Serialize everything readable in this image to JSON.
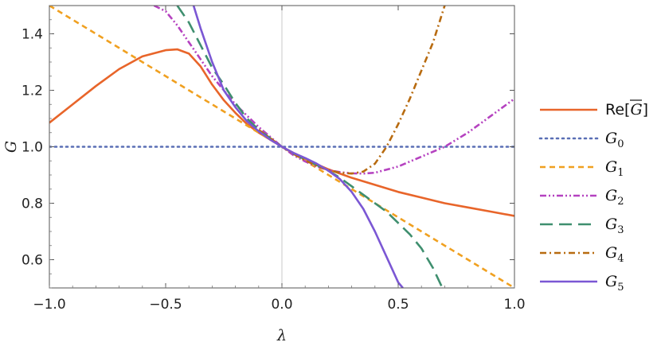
{
  "chart_data": {
    "type": "line",
    "xlabel": "λ",
    "ylabel": "G",
    "xlim": [
      -1.0,
      1.0
    ],
    "ylim": [
      0.5,
      1.5
    ],
    "xticks": [
      "−1.0",
      "−0.5",
      "0.0",
      "0.5",
      "1.0"
    ],
    "xtick_values": [
      -1.0,
      -0.5,
      0.0,
      0.5,
      1.0
    ],
    "yticks": [
      "0.6",
      "0.8",
      "1.0",
      "1.2",
      "1.4"
    ],
    "ytick_values": [
      0.6,
      0.8,
      1.0,
      1.2,
      1.4
    ],
    "grid": false,
    "legend_placement": "right",
    "series": [
      {
        "name": "Re[G̅]",
        "legend_main": "Re[",
        "legend_over": "G",
        "legend_close": "]",
        "color": "#e8652a",
        "dash": "solid",
        "x": [
          -1.0,
          -0.9,
          -0.8,
          -0.7,
          -0.6,
          -0.5,
          -0.45,
          -0.4,
          -0.35,
          -0.3,
          -0.25,
          -0.2,
          -0.15,
          -0.1,
          -0.05,
          0.0,
          0.05,
          0.1,
          0.15,
          0.2,
          0.25,
          0.3,
          0.4,
          0.5,
          0.6,
          0.7,
          0.8,
          0.9,
          1.0
        ],
        "y": [
          1.085,
          1.15,
          1.215,
          1.275,
          1.32,
          1.342,
          1.345,
          1.33,
          1.285,
          1.22,
          1.165,
          1.12,
          1.08,
          1.05,
          1.025,
          1.0,
          0.978,
          0.958,
          0.938,
          0.92,
          0.905,
          0.89,
          0.865,
          0.84,
          0.82,
          0.8,
          0.785,
          0.77,
          0.755
        ]
      },
      {
        "name": "G0",
        "legend_main": "G",
        "legend_sub": "0",
        "color": "#5a6fb5",
        "dash": "dotted",
        "x": [
          -1.0,
          1.0
        ],
        "y": [
          1.0,
          1.0
        ]
      },
      {
        "name": "G1",
        "legend_main": "G",
        "legend_sub": "1",
        "color": "#f0a020",
        "dash": "short-dash",
        "x": [
          -1.0,
          1.0
        ],
        "y": [
          1.5,
          0.5
        ]
      },
      {
        "name": "G2",
        "legend_main": "G",
        "legend_sub": "2",
        "color": "#b542c0",
        "dash": "dash-dot-dot",
        "x": [
          -0.55,
          -0.5,
          -0.45,
          -0.4,
          -0.35,
          -0.3,
          -0.25,
          -0.2,
          -0.15,
          -0.1,
          -0.05,
          0.0,
          0.05,
          0.1,
          0.15,
          0.2,
          0.25,
          0.3,
          0.35,
          0.4,
          0.5,
          0.6,
          0.7,
          0.8,
          0.9,
          1.0
        ],
        "y": [
          1.5,
          1.48,
          1.43,
          1.37,
          1.31,
          1.25,
          1.2,
          1.15,
          1.11,
          1.07,
          1.035,
          1.0,
          0.97,
          0.948,
          0.93,
          0.917,
          0.91,
          0.906,
          0.905,
          0.908,
          0.93,
          0.965,
          1.0,
          1.05,
          1.11,
          1.17
        ]
      },
      {
        "name": "G3",
        "legend_main": "G",
        "legend_sub": "3",
        "color": "#3f8f6f",
        "dash": "long-dash",
        "x": [
          -0.45,
          -0.4,
          -0.35,
          -0.3,
          -0.25,
          -0.2,
          -0.15,
          -0.1,
          -0.05,
          0.0,
          0.05,
          0.1,
          0.15,
          0.2,
          0.25,
          0.3,
          0.35,
          0.4,
          0.45,
          0.5,
          0.55,
          0.6,
          0.65,
          0.69
        ],
        "y": [
          1.5,
          1.44,
          1.36,
          1.28,
          1.22,
          1.155,
          1.1,
          1.06,
          1.03,
          1.0,
          0.975,
          0.955,
          0.935,
          0.915,
          0.89,
          0.86,
          0.83,
          0.8,
          0.77,
          0.73,
          0.69,
          0.64,
          0.57,
          0.5
        ]
      },
      {
        "name": "G4",
        "legend_main": "G",
        "legend_sub": "4",
        "color": "#b86b10",
        "dash": "dash-dot",
        "x": [
          -0.1,
          -0.05,
          0.0,
          0.05,
          0.1,
          0.15,
          0.2,
          0.25,
          0.3,
          0.35,
          0.4,
          0.45,
          0.5,
          0.55,
          0.6,
          0.65,
          0.7
        ],
        "y": [
          1.06,
          1.03,
          1.0,
          0.975,
          0.952,
          0.932,
          0.917,
          0.908,
          0.905,
          0.912,
          0.94,
          1.0,
          1.08,
          1.17,
          1.27,
          1.37,
          1.5
        ]
      },
      {
        "name": "G5",
        "legend_main": "G",
        "legend_sub": "5",
        "color": "#7b57d4",
        "dash": "solid",
        "x": [
          -0.38,
          -0.35,
          -0.3,
          -0.25,
          -0.2,
          -0.15,
          -0.1,
          -0.05,
          0.0,
          0.05,
          0.1,
          0.15,
          0.2,
          0.25,
          0.3,
          0.35,
          0.4,
          0.45,
          0.5,
          0.52
        ],
        "y": [
          1.5,
          1.42,
          1.3,
          1.2,
          1.14,
          1.09,
          1.055,
          1.025,
          1.0,
          0.978,
          0.96,
          0.94,
          0.915,
          0.885,
          0.84,
          0.78,
          0.7,
          0.61,
          0.52,
          0.5
        ]
      }
    ]
  }
}
